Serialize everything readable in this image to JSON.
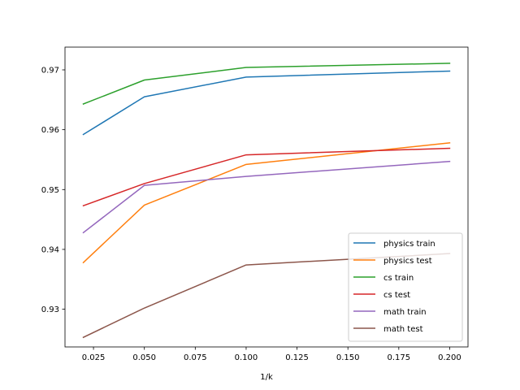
{
  "chart_data": {
    "type": "line",
    "title": "",
    "xlabel": "1/k",
    "ylabel": "",
    "x": [
      0.02,
      0.05,
      0.1,
      0.2
    ],
    "xlim": [
      0.011,
      0.209
    ],
    "ylim": [
      0.9237,
      0.9738
    ],
    "xticks": [
      0.025,
      0.05,
      0.075,
      0.1,
      0.125,
      0.15,
      0.175,
      0.2
    ],
    "xtick_labels": [
      "0.025",
      "0.050",
      "0.075",
      "0.100",
      "0.125",
      "0.150",
      "0.175",
      "0.200"
    ],
    "yticks": [
      0.93,
      0.94,
      0.95,
      0.96,
      0.97
    ],
    "ytick_labels": [
      "0.93",
      "0.94",
      "0.95",
      "0.96",
      "0.97"
    ],
    "grid": false,
    "legend_position": "lower-right",
    "series": [
      {
        "name": "physics train",
        "color": "#1f77b4",
        "values": [
          0.9592,
          0.9655,
          0.9688,
          0.9698
        ]
      },
      {
        "name": "physics test",
        "color": "#ff7f0e",
        "values": [
          0.9378,
          0.9474,
          0.9542,
          0.9578
        ]
      },
      {
        "name": "cs train",
        "color": "#2ca02c",
        "values": [
          0.9643,
          0.9683,
          0.9704,
          0.9711
        ]
      },
      {
        "name": "cs test",
        "color": "#d62728",
        "values": [
          0.9473,
          0.951,
          0.9558,
          0.9569
        ]
      },
      {
        "name": "math train",
        "color": "#9467bd",
        "values": [
          0.9428,
          0.9507,
          0.9522,
          0.9547
        ]
      },
      {
        "name": "math test",
        "color": "#8c564b",
        "values": [
          0.9253,
          0.9302,
          0.9374,
          0.9393
        ]
      }
    ]
  }
}
